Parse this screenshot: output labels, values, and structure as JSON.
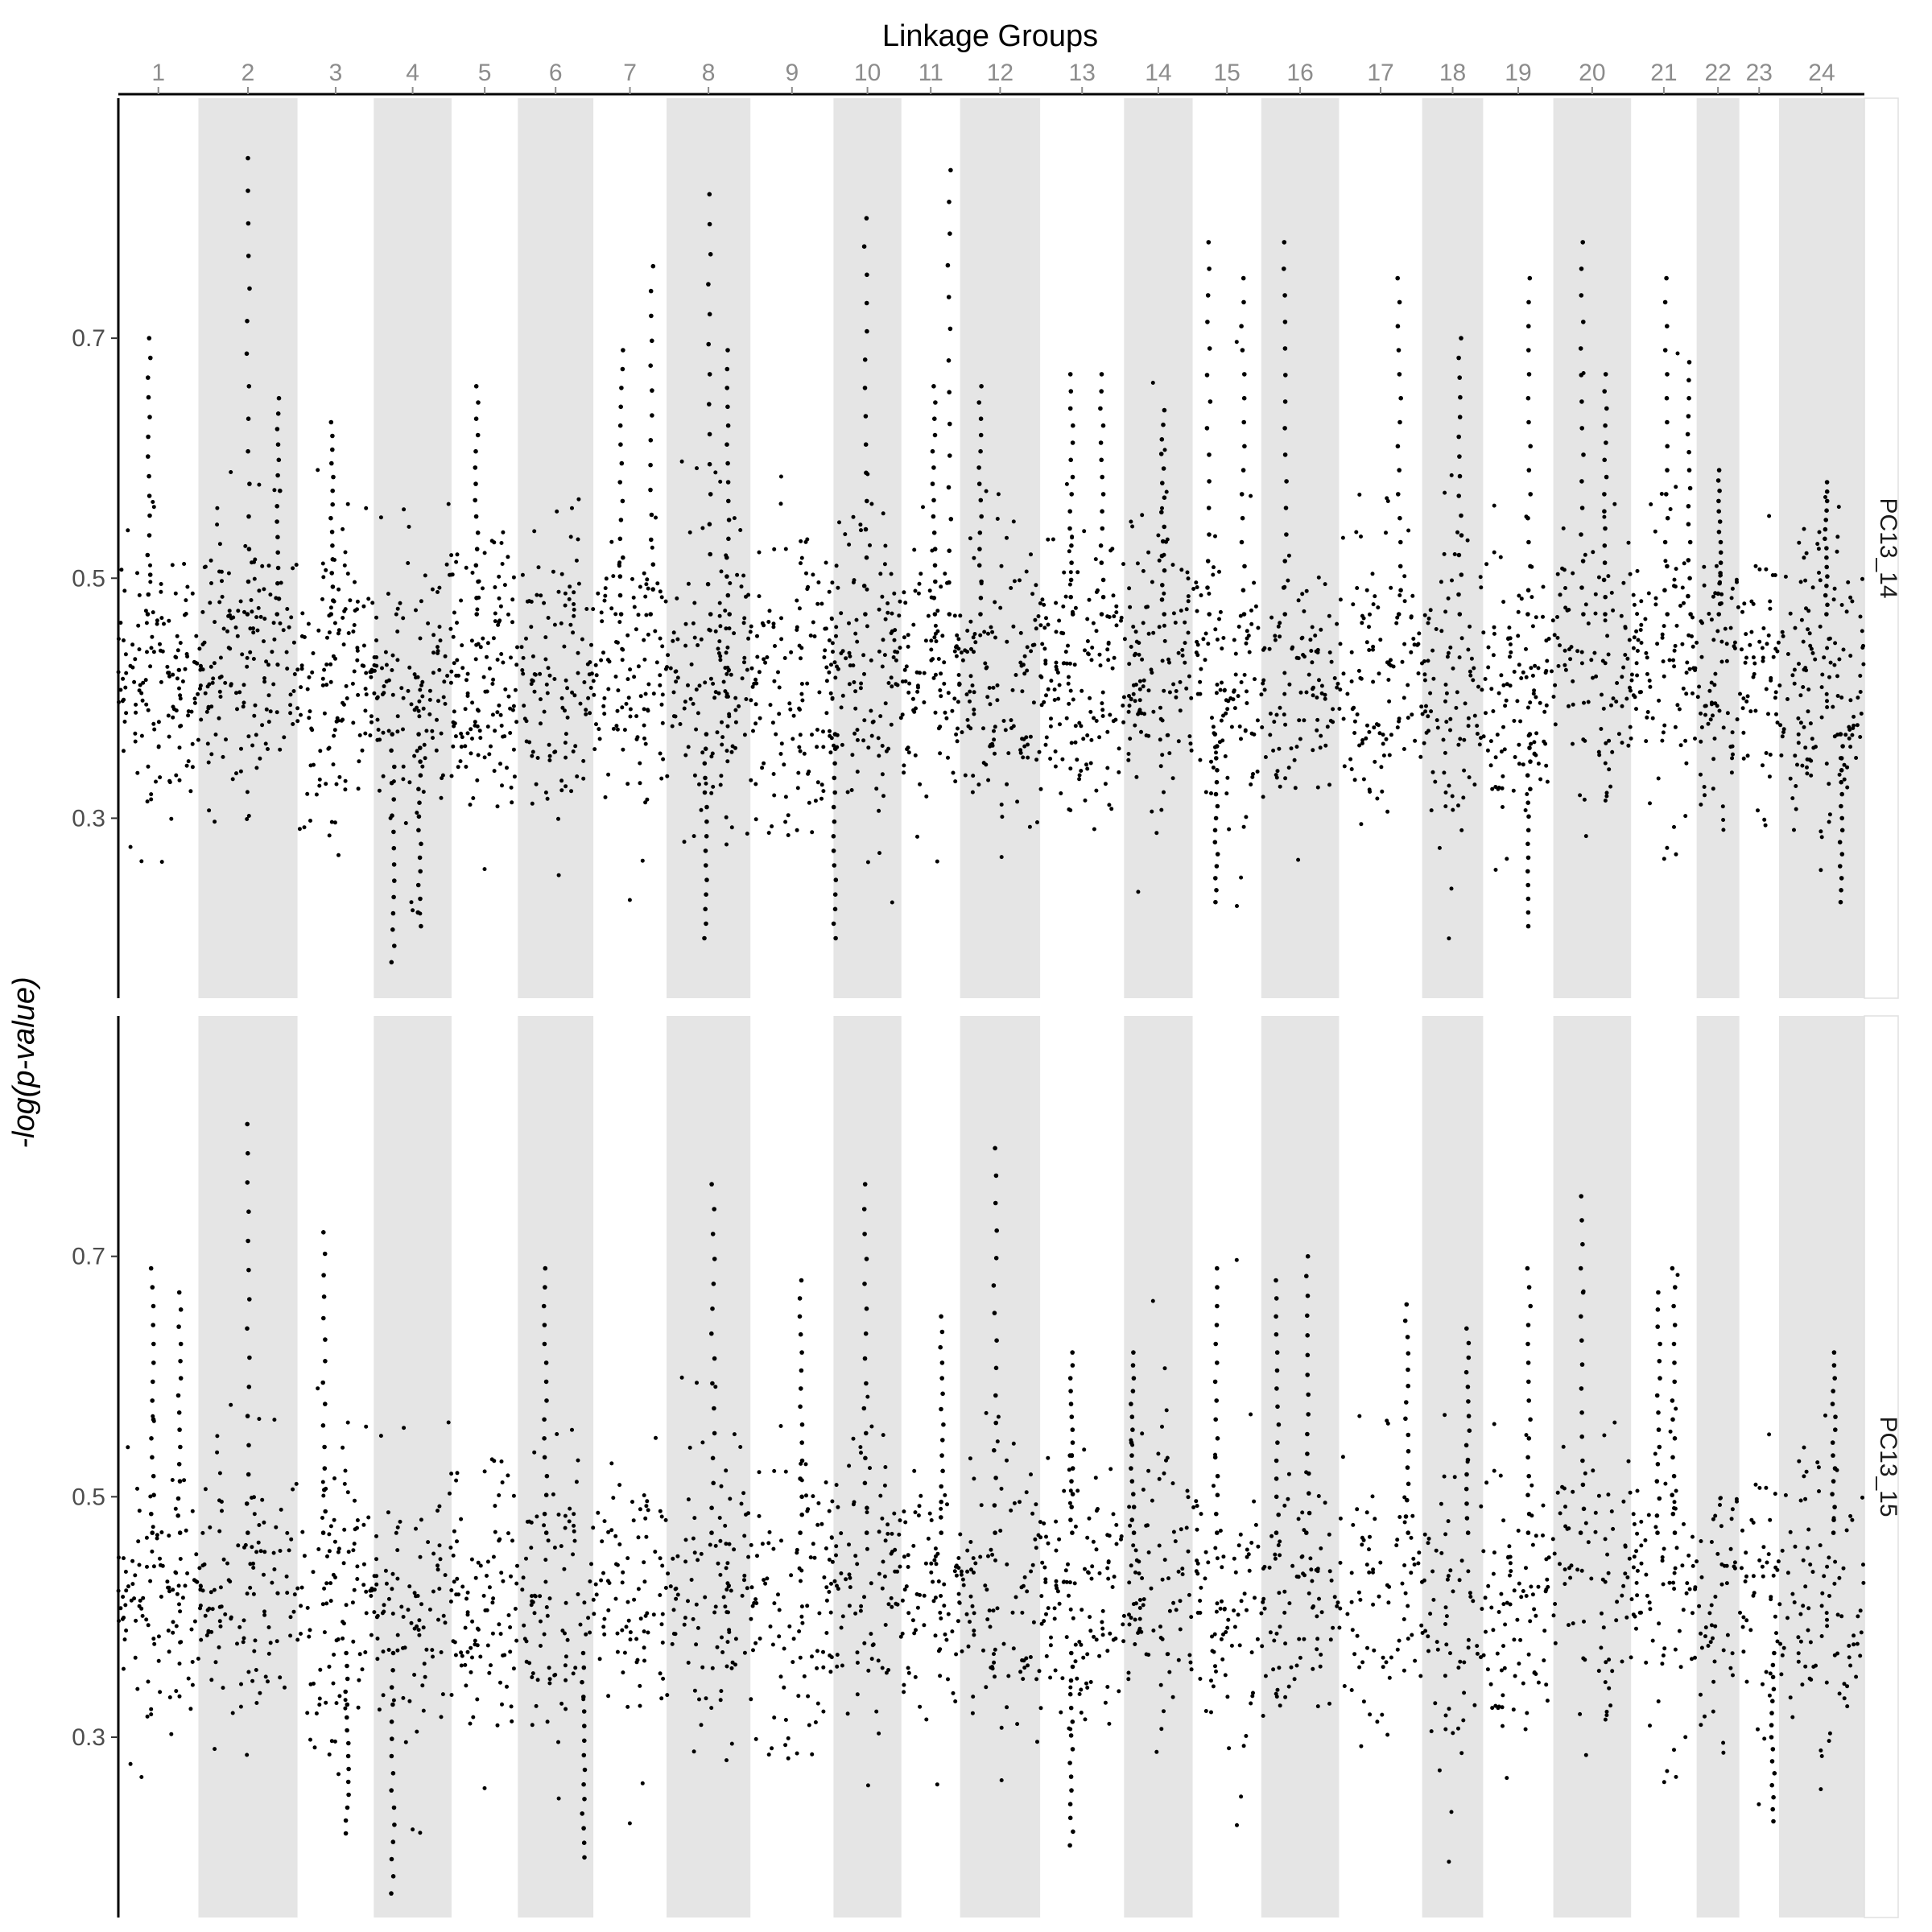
{
  "chart_data": {
    "type": "scatter",
    "title": "Linkage Groups",
    "ylabel": "-log(p-value)",
    "linkage_groups": [
      "1",
      "2",
      "3",
      "4",
      "5",
      "6",
      "7",
      "8",
      "9",
      "10",
      "11",
      "12",
      "13",
      "14",
      "15",
      "16",
      "17",
      "18",
      "19",
      "20",
      "21",
      "22",
      "23",
      "24"
    ],
    "linkage_group_bounds": [
      [
        0,
        105
      ],
      [
        105,
        235
      ],
      [
        235,
        335
      ],
      [
        335,
        437
      ],
      [
        437,
        524
      ],
      [
        524,
        623
      ],
      [
        623,
        719
      ],
      [
        719,
        829
      ],
      [
        829,
        938
      ],
      [
        938,
        1027
      ],
      [
        1027,
        1104
      ],
      [
        1104,
        1209
      ],
      [
        1209,
        1319
      ],
      [
        1319,
        1409
      ],
      [
        1409,
        1499
      ],
      [
        1499,
        1601
      ],
      [
        1601,
        1710
      ],
      [
        1710,
        1790
      ],
      [
        1790,
        1882
      ],
      [
        1882,
        1984
      ],
      [
        1984,
        2070
      ],
      [
        2070,
        2126
      ],
      [
        2126,
        2178
      ],
      [
        2178,
        2290
      ]
    ],
    "x_unit": "cumulative genomic position (approximate, arbitrary units)",
    "background_shading": "alternating white / light grey bands per linkage group",
    "point_color": "#000000",
    "panels": [
      {
        "name": "PC13_14",
        "ylim": [
          0.15,
          0.9
        ],
        "yticks": [
          0.3,
          0.5,
          0.7
        ],
        "baseline": 0.42,
        "spread": 0.05,
        "group_depth": [
          0.03,
          -0.02,
          0.04,
          0.06,
          0.02,
          0.03,
          -0.01,
          0.05,
          0.03,
          0.02,
          0.01,
          0.03,
          0.03,
          0.01,
          0.02,
          0.03,
          0.03,
          0.02,
          0.04,
          0.03,
          0.02,
          0.02,
          0.04,
          0.04
        ],
        "peaks": [
          {
            "lg": "1",
            "x": 40,
            "y": 0.7
          },
          {
            "lg": "2",
            "x": 170,
            "y": 0.85
          },
          {
            "lg": "2",
            "x": 210,
            "y": 0.65
          },
          {
            "lg": "3",
            "x": 280,
            "y": 0.63
          },
          {
            "lg": "5",
            "x": 470,
            "y": 0.66
          },
          {
            "lg": "7",
            "x": 660,
            "y": 0.69
          },
          {
            "lg": "7",
            "x": 700,
            "y": 0.76
          },
          {
            "lg": "8",
            "x": 775,
            "y": 0.82
          },
          {
            "lg": "8",
            "x": 800,
            "y": 0.69
          },
          {
            "lg": "10",
            "x": 980,
            "y": 0.8
          },
          {
            "lg": "11",
            "x": 1070,
            "y": 0.66
          },
          {
            "lg": "11",
            "x": 1090,
            "y": 0.84
          },
          {
            "lg": "12",
            "x": 1130,
            "y": 0.66
          },
          {
            "lg": "13",
            "x": 1250,
            "y": 0.67
          },
          {
            "lg": "13",
            "x": 1290,
            "y": 0.67
          },
          {
            "lg": "14",
            "x": 1370,
            "y": 0.64
          },
          {
            "lg": "15",
            "x": 1430,
            "y": 0.78
          },
          {
            "lg": "15",
            "x": 1475,
            "y": 0.75
          },
          {
            "lg": "16",
            "x": 1530,
            "y": 0.78
          },
          {
            "lg": "17",
            "x": 1680,
            "y": 0.75
          },
          {
            "lg": "18",
            "x": 1760,
            "y": 0.7
          },
          {
            "lg": "19",
            "x": 1850,
            "y": 0.75
          },
          {
            "lg": "20",
            "x": 1920,
            "y": 0.78
          },
          {
            "lg": "20",
            "x": 1950,
            "y": 0.67
          },
          {
            "lg": "21",
            "x": 2030,
            "y": 0.75
          },
          {
            "lg": "21",
            "x": 2060,
            "y": 0.68
          },
          {
            "lg": "22",
            "x": 2100,
            "y": 0.59
          },
          {
            "lg": "24",
            "x": 2240,
            "y": 0.58
          }
        ],
        "troughs": [
          {
            "lg": "4",
            "x": 360,
            "y": 0.18
          },
          {
            "lg": "4",
            "x": 395,
            "y": 0.21
          },
          {
            "lg": "8",
            "x": 770,
            "y": 0.2
          },
          {
            "lg": "9",
            "x": 940,
            "y": 0.2
          },
          {
            "lg": "15",
            "x": 1440,
            "y": 0.23
          },
          {
            "lg": "19",
            "x": 1850,
            "y": 0.21
          },
          {
            "lg": "24",
            "x": 2260,
            "y": 0.23
          }
        ]
      },
      {
        "name": "PC13_15",
        "ylim": [
          0.15,
          0.9
        ],
        "yticks": [
          0.3,
          0.5,
          0.7
        ],
        "baseline": 0.42,
        "spread": 0.05,
        "group_depth": [
          0.02,
          0.02,
          0.04,
          0.06,
          0.02,
          0.04,
          0.0,
          0.04,
          0.04,
          0.03,
          0.02,
          0.04,
          0.03,
          0.01,
          0.02,
          0.03,
          0.04,
          0.03,
          0.04,
          0.03,
          0.03,
          0.03,
          0.04,
          0.04
        ],
        "peaks": [
          {
            "lg": "1",
            "x": 45,
            "y": 0.69
          },
          {
            "lg": "1",
            "x": 80,
            "y": 0.67
          },
          {
            "lg": "2",
            "x": 170,
            "y": 0.81
          },
          {
            "lg": "3",
            "x": 270,
            "y": 0.72
          },
          {
            "lg": "6",
            "x": 560,
            "y": 0.69
          },
          {
            "lg": "8",
            "x": 780,
            "y": 0.76
          },
          {
            "lg": "9",
            "x": 895,
            "y": 0.68
          },
          {
            "lg": "10",
            "x": 980,
            "y": 0.76
          },
          {
            "lg": "11",
            "x": 1080,
            "y": 0.65
          },
          {
            "lg": "12",
            "x": 1150,
            "y": 0.79
          },
          {
            "lg": "13",
            "x": 1250,
            "y": 0.62
          },
          {
            "lg": "14",
            "x": 1330,
            "y": 0.62
          },
          {
            "lg": "15",
            "x": 1440,
            "y": 0.69
          },
          {
            "lg": "16",
            "x": 1520,
            "y": 0.68
          },
          {
            "lg": "16",
            "x": 1560,
            "y": 0.7
          },
          {
            "lg": "17",
            "x": 1690,
            "y": 0.66
          },
          {
            "lg": "18",
            "x": 1770,
            "y": 0.64
          },
          {
            "lg": "19",
            "x": 1850,
            "y": 0.69
          },
          {
            "lg": "20",
            "x": 1920,
            "y": 0.75
          },
          {
            "lg": "21",
            "x": 2020,
            "y": 0.67
          },
          {
            "lg": "21",
            "x": 2040,
            "y": 0.69
          },
          {
            "lg": "24",
            "x": 2250,
            "y": 0.62
          }
        ],
        "troughs": [
          {
            "lg": "3",
            "x": 300,
            "y": 0.22
          },
          {
            "lg": "4",
            "x": 360,
            "y": 0.17
          },
          {
            "lg": "6",
            "x": 610,
            "y": 0.2
          },
          {
            "lg": "13",
            "x": 1250,
            "y": 0.21
          },
          {
            "lg": "23",
            "x": 2170,
            "y": 0.23
          }
        ]
      }
    ]
  }
}
